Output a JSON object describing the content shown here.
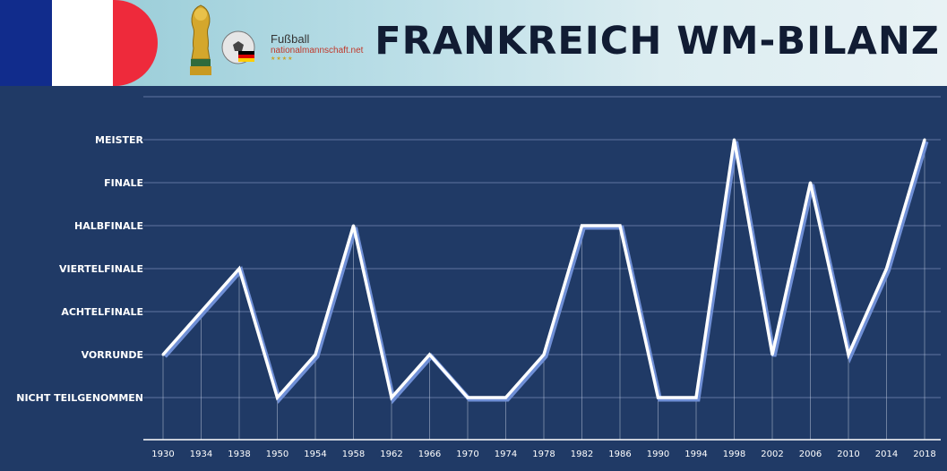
{
  "header": {
    "title": "FRANKREICH WM-BILANZ",
    "brand_line1": "Fußball",
    "brand_line2": "nationalmannschaft.net",
    "brand_stars": "★★★★",
    "flag_colors": [
      "#112c8c",
      "#ffffff",
      "#ee2a3b"
    ]
  },
  "chart_data": {
    "type": "line",
    "title": "FRANKREICH WM-BILANZ",
    "categories": [
      "1930",
      "1934",
      "1938",
      "1950",
      "1954",
      "1958",
      "1962",
      "1966",
      "1970",
      "1974",
      "1978",
      "1982",
      "1986",
      "1990",
      "1994",
      "1998",
      "2002",
      "2006",
      "2010",
      "2014",
      "2018"
    ],
    "y_levels": [
      "NICHT TEILGENOMMEN",
      "VORRUNDE",
      "ACHTELFINALE",
      "VIERTELFINALE",
      "HALBFINALE",
      "FINALE",
      "MEISTER"
    ],
    "series": [
      {
        "values": [
          "VORRUNDE",
          "ACHTELFINALE",
          "VIERTELFINALE",
          "NICHT TEILGENOMMEN",
          "VORRUNDE",
          "HALBFINALE",
          "NICHT TEILGENOMMEN",
          "VORRUNDE",
          "NICHT TEILGENOMMEN",
          "NICHT TEILGENOMMEN",
          "VORRUNDE",
          "HALBFINALE",
          "HALBFINALE",
          "NICHT TEILGENOMMEN",
          "NICHT TEILGENOMMEN",
          "MEISTER",
          "VORRUNDE",
          "FINALE",
          "VORRUNDE",
          "VIERTELFINALE",
          "MEISTER"
        ]
      }
    ],
    "grid": true,
    "colors": {
      "background": "#203a66",
      "line": "#ffffff",
      "line_shadow": "#6f8fd6",
      "grid": "#5f74a0"
    }
  }
}
